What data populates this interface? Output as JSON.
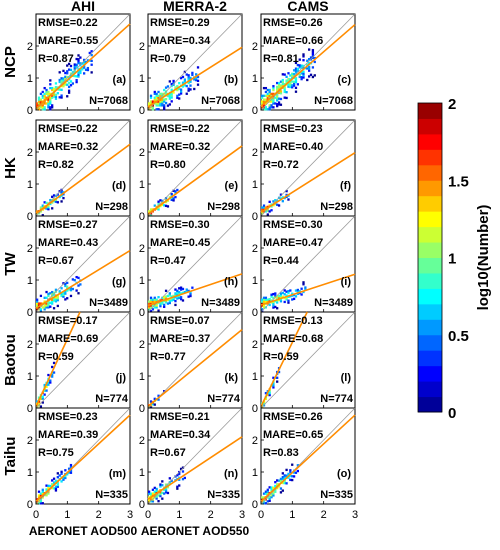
{
  "chart_data": {
    "type": "scatter",
    "plot_kind": "density scatter with 1:1 line and orange regression fit",
    "columns": [
      "AHI",
      "MERRA-2",
      "CAMS"
    ],
    "rows": [
      "NCP",
      "HK",
      "TW",
      "Baotou",
      "Taihu"
    ],
    "xlabels": [
      "AERONET AOD500",
      "AERONET AOD550",
      ""
    ],
    "xlim": [
      0,
      3
    ],
    "ylim": [
      0,
      3
    ],
    "xticks": [
      "0",
      "1",
      "2",
      "3"
    ],
    "yticks": [
      "0",
      "1",
      "2"
    ],
    "colorbar": {
      "label": "log10(Number)",
      "min": 0,
      "max": 2,
      "ticks": [
        "0",
        "0.5",
        "1",
        "1.5",
        "2"
      ],
      "colormap": "jet"
    },
    "line_colors": {
      "one_to_one": "#9a9a9a",
      "fit": "#ff8c00"
    },
    "panels": [
      {
        "row": "NCP",
        "col": "AHI",
        "letter": "(a)",
        "rmse": "0.22",
        "mare": "0.55",
        "r": "0.87",
        "n": "7068",
        "fit_slope": 0.88,
        "fit_intercept": 0.05,
        "spread": 0.35,
        "xmax": 1.8
      },
      {
        "row": "NCP",
        "col": "MERRA-2",
        "letter": "(b)",
        "rmse": "0.29",
        "mare": "0.34",
        "r": "0.79",
        "n": "7068",
        "fit_slope": 0.62,
        "fit_intercept": 0.1,
        "spread": 0.3,
        "xmax": 1.6
      },
      {
        "row": "NCP",
        "col": "CAMS",
        "letter": "(c)",
        "rmse": "0.26",
        "mare": "0.66",
        "r": "0.81",
        "n": "7068",
        "fit_slope": 0.85,
        "fit_intercept": 0.12,
        "spread": 0.35,
        "xmax": 1.7
      },
      {
        "row": "HK",
        "col": "AHI",
        "letter": "(d)",
        "rmse": "0.22",
        "mare": "0.32",
        "r": "0.82",
        "n": "298",
        "fit_slope": 0.72,
        "fit_intercept": 0.08,
        "spread": 0.15,
        "xmax": 0.9
      },
      {
        "row": "HK",
        "col": "MERRA-2",
        "letter": "(e)",
        "rmse": "0.22",
        "mare": "0.32",
        "r": "0.80",
        "n": "298",
        "fit_slope": 0.71,
        "fit_intercept": 0.06,
        "spread": 0.15,
        "xmax": 1.0
      },
      {
        "row": "HK",
        "col": "CAMS",
        "letter": "(f)",
        "rmse": "0.23",
        "mare": "0.40",
        "r": "0.72",
        "n": "298",
        "fit_slope": 0.62,
        "fit_intercept": 0.12,
        "spread": 0.15,
        "xmax": 0.9
      },
      {
        "row": "TW",
        "col": "AHI",
        "letter": "(g)",
        "rmse": "0.27",
        "mare": "0.43",
        "r": "0.67",
        "n": "3489",
        "fit_slope": 0.6,
        "fit_intercept": 0.12,
        "spread": 0.25,
        "xmax": 1.4
      },
      {
        "row": "TW",
        "col": "MERRA-2",
        "letter": "(h)",
        "rmse": "0.30",
        "mare": "0.45",
        "r": "0.47",
        "n": "3489",
        "fit_slope": 0.33,
        "fit_intercept": 0.2,
        "spread": 0.2,
        "xmax": 1.4
      },
      {
        "row": "TW",
        "col": "CAMS",
        "letter": "(i)",
        "rmse": "0.30",
        "mare": "0.47",
        "r": "0.44",
        "n": "3489",
        "fit_slope": 0.32,
        "fit_intercept": 0.22,
        "spread": 0.2,
        "xmax": 1.4
      },
      {
        "row": "Baotou",
        "col": "AHI",
        "letter": "(j)",
        "rmse": "0.17",
        "mare": "0.69",
        "r": "0.59",
        "n": "774",
        "fit_slope": 2.1,
        "fit_intercept": 0.05,
        "spread": 0.2,
        "xmax": 0.6
      },
      {
        "row": "Baotou",
        "col": "MERRA-2",
        "letter": "(k)",
        "rmse": "0.07",
        "mare": "0.37",
        "r": "0.77",
        "n": "774",
        "fit_slope": 0.8,
        "fit_intercept": 0.05,
        "spread": 0.08,
        "xmax": 0.5
      },
      {
        "row": "Baotou",
        "col": "CAMS",
        "letter": "(l)",
        "rmse": "0.13",
        "mare": "0.68",
        "r": "0.59",
        "n": "774",
        "fit_slope": 2.0,
        "fit_intercept": 0.05,
        "spread": 0.15,
        "xmax": 0.6
      },
      {
        "row": "Taihu",
        "col": "AHI",
        "letter": "(m)",
        "rmse": "0.23",
        "mare": "0.39",
        "r": "0.75",
        "n": "335",
        "fit_slope": 0.9,
        "fit_intercept": 0.08,
        "spread": 0.2,
        "xmax": 1.1
      },
      {
        "row": "Taihu",
        "col": "MERRA-2",
        "letter": "(n)",
        "rmse": "0.21",
        "mare": "0.34",
        "r": "0.67",
        "n": "335",
        "fit_slope": 0.65,
        "fit_intercept": 0.15,
        "spread": 0.2,
        "xmax": 1.2
      },
      {
        "row": "Taihu",
        "col": "CAMS",
        "letter": "(o)",
        "rmse": "0.26",
        "mare": "0.65",
        "r": "0.83",
        "n": "335",
        "fit_slope": 0.9,
        "fit_intercept": 0.08,
        "spread": 0.2,
        "xmax": 1.2
      }
    ]
  }
}
